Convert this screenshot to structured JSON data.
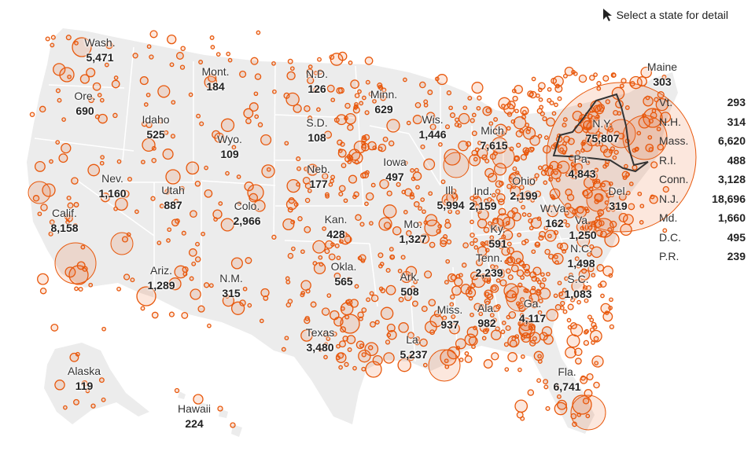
{
  "hint": {
    "text": "Select a state for detail",
    "icon": "cursor-arrow-icon"
  },
  "colors": {
    "land": "#ececec",
    "border": "#ffffff",
    "bubble": "#e8580c",
    "bubble_fill": "rgba(232,88,12,0.14)",
    "selected_outline": "#333333"
  },
  "selected_state": "N.Y.",
  "map_labels": [
    {
      "name": "Wash.",
      "value": "5,471"
    },
    {
      "name": "Ore.",
      "value": "690"
    },
    {
      "name": "Calif.",
      "value": "8,158"
    },
    {
      "name": "Nev.",
      "value": "1,160"
    },
    {
      "name": "Idaho",
      "value": "525"
    },
    {
      "name": "Mont.",
      "value": "184"
    },
    {
      "name": "Wyo.",
      "value": "109"
    },
    {
      "name": "Utah",
      "value": "887"
    },
    {
      "name": "Ariz.",
      "value": "1,289"
    },
    {
      "name": "Colo.",
      "value": "2,966"
    },
    {
      "name": "N.M.",
      "value": "315"
    },
    {
      "name": "N.D.",
      "value": "126"
    },
    {
      "name": "S.D.",
      "value": "108"
    },
    {
      "name": "Neb.",
      "value": "177"
    },
    {
      "name": "Kan.",
      "value": "428"
    },
    {
      "name": "Okla.",
      "value": "565"
    },
    {
      "name": "Texas",
      "value": "3,480"
    },
    {
      "name": "Minn.",
      "value": "629"
    },
    {
      "name": "Iowa",
      "value": "497"
    },
    {
      "name": "Mo.",
      "value": "1,327"
    },
    {
      "name": "Ark.",
      "value": "508"
    },
    {
      "name": "La.",
      "value": "5,237"
    },
    {
      "name": "Wis.",
      "value": "1,446"
    },
    {
      "name": "Ill.",
      "value": "5,994"
    },
    {
      "name": "Miss.",
      "value": "937"
    },
    {
      "name": "Mich.",
      "value": "7,615"
    },
    {
      "name": "Ind.",
      "value": "2,159"
    },
    {
      "name": "Ky.",
      "value": "591"
    },
    {
      "name": "Tenn.",
      "value": "2,239"
    },
    {
      "name": "Ala.",
      "value": "982"
    },
    {
      "name": "Ohio",
      "value": "2,199"
    },
    {
      "name": "Ga.",
      "value": "4,117"
    },
    {
      "name": "Fla.",
      "value": "6,741"
    },
    {
      "name": "W.Va.",
      "value": "162"
    },
    {
      "name": "Va.",
      "value": "1,250"
    },
    {
      "name": "N.C.",
      "value": "1,498"
    },
    {
      "name": "S.C.",
      "value": "1,083"
    },
    {
      "name": "Pa.",
      "value": "4,843"
    },
    {
      "name": "N.Y.",
      "value": "75,807"
    },
    {
      "name": "Del.",
      "value": "319"
    },
    {
      "name": "Maine",
      "value": "303"
    },
    {
      "name": "Alaska",
      "value": "119"
    },
    {
      "name": "Hawaii",
      "value": "224"
    }
  ],
  "side_list": [
    {
      "name": "Vt.",
      "value": "293"
    },
    {
      "name": "N.H.",
      "value": "314"
    },
    {
      "name": "Mass.",
      "value": "6,620"
    },
    {
      "name": "R.I.",
      "value": "488"
    },
    {
      "name": "Conn.",
      "value": "3,128"
    },
    {
      "name": "N.J.",
      "value": "18,696"
    },
    {
      "name": "Md.",
      "value": "1,660"
    },
    {
      "name": "D.C.",
      "value": "495"
    },
    {
      "name": "P.R.",
      "value": "239"
    }
  ]
}
